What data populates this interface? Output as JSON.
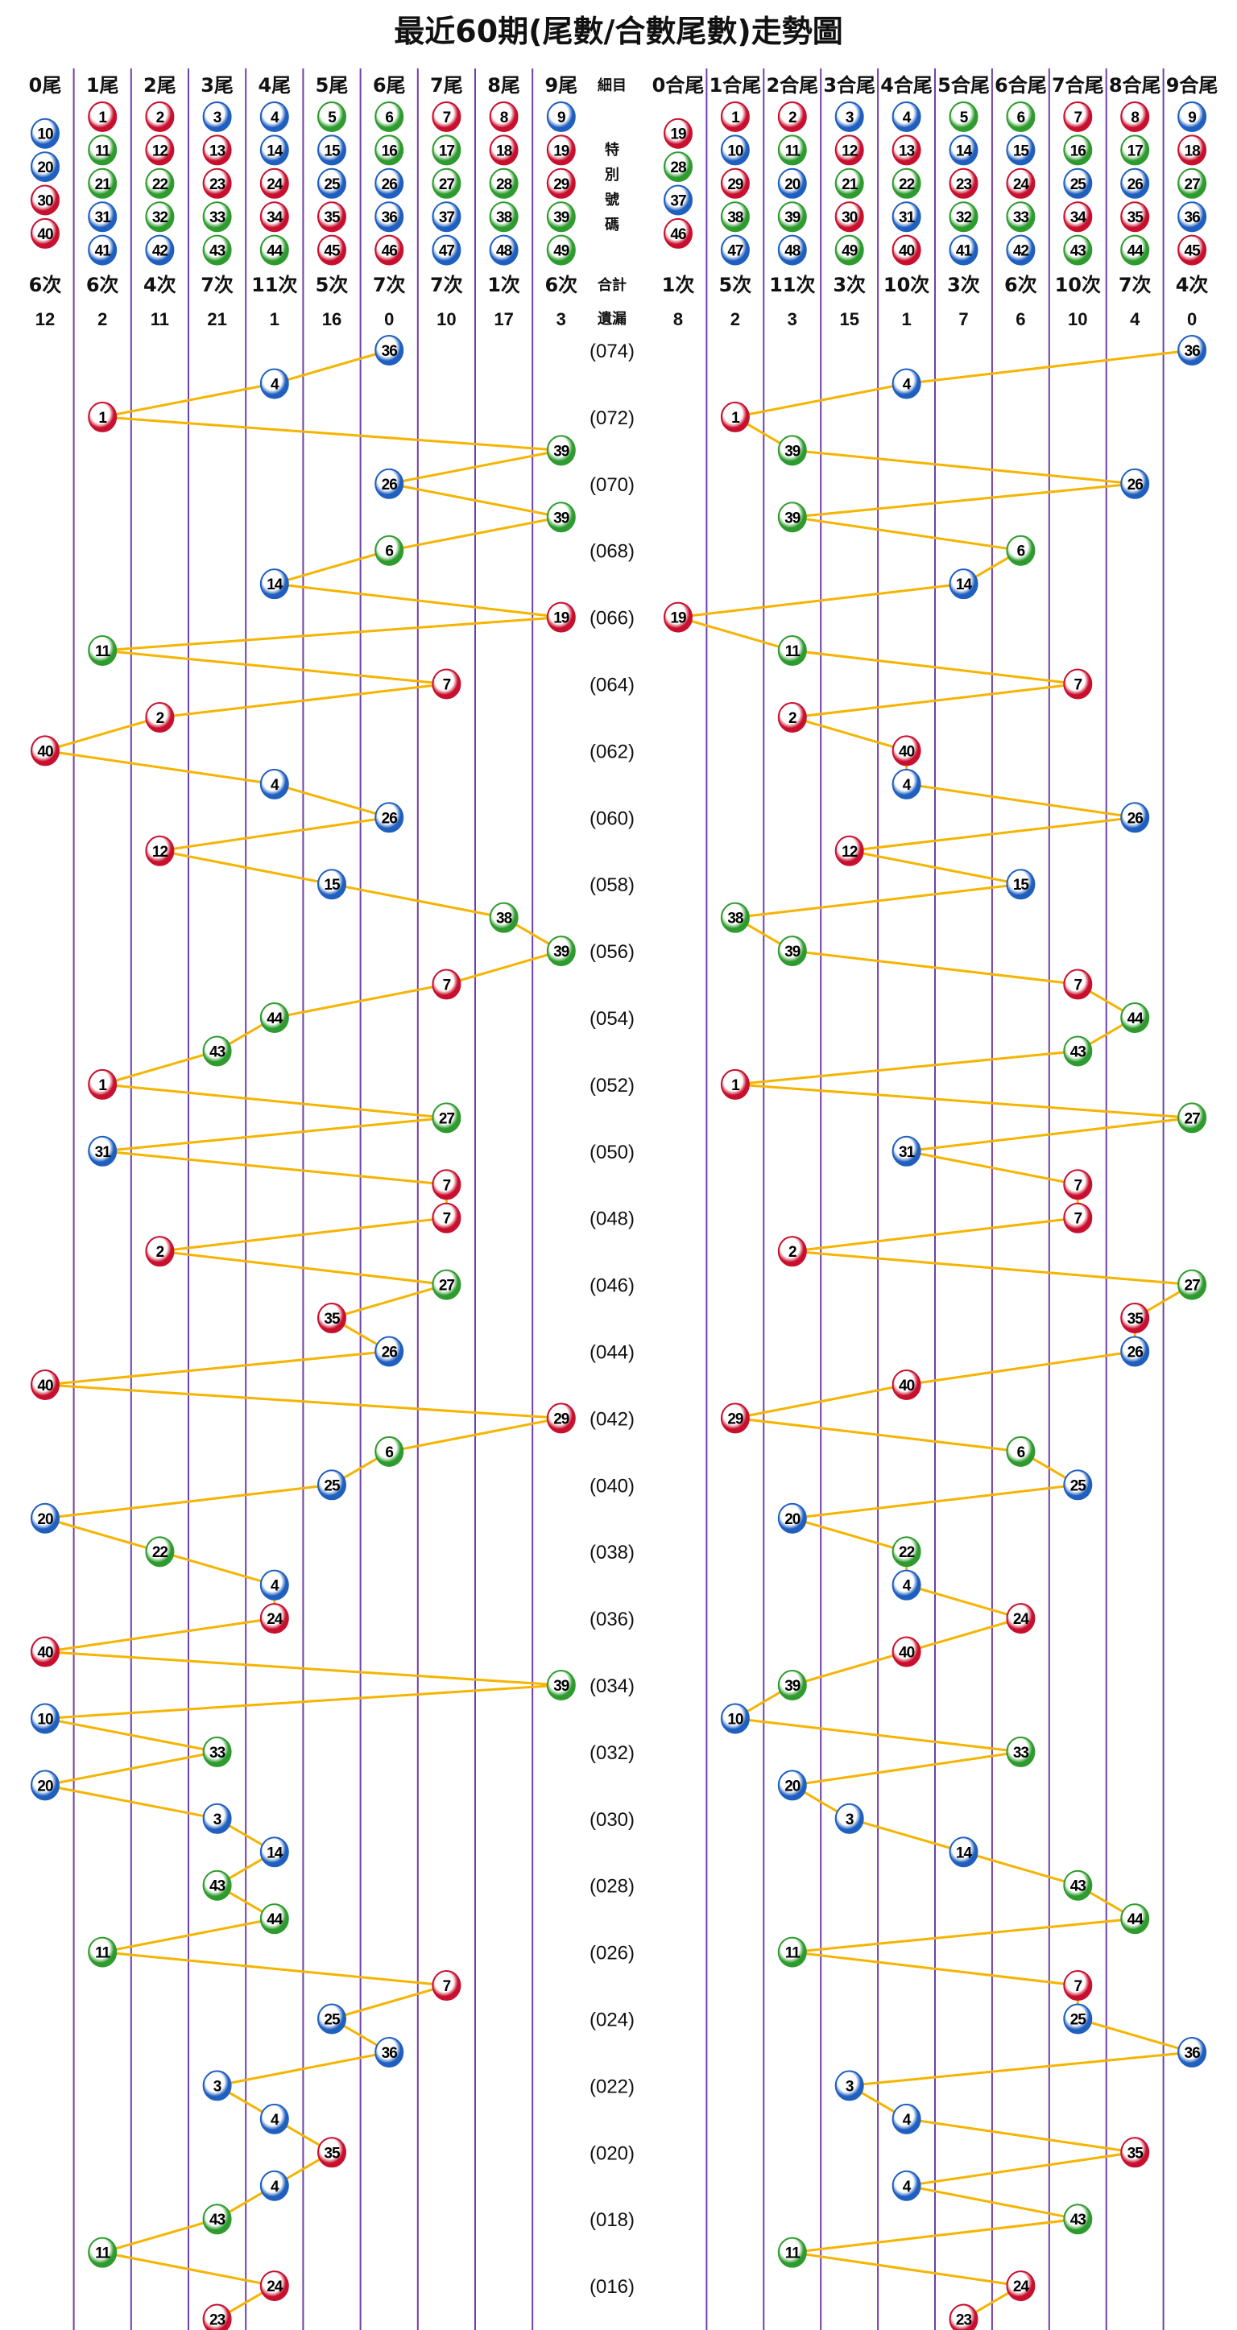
{
  "title": "最近60期(尾數/合數尾數)走勢圖",
  "colors": {
    "red": "#c8102e",
    "blue": "#1f5fbf",
    "green": "#2e9b2e",
    "trend_line": "#f5b400",
    "grid_line": "#6f3fa8"
  },
  "ball_colors": {
    "red": [
      1,
      2,
      7,
      8,
      12,
      13,
      18,
      19,
      23,
      24,
      29,
      30,
      34,
      35,
      40,
      45,
      46
    ],
    "blue": [
      3,
      4,
      9,
      10,
      14,
      15,
      20,
      25,
      26,
      31,
      36,
      37,
      41,
      42,
      47,
      48
    ],
    "green": [
      5,
      6,
      11,
      16,
      17,
      21,
      22,
      27,
      28,
      32,
      33,
      38,
      39,
      43,
      44,
      49
    ]
  },
  "left": {
    "headers": [
      "0尾",
      "1尾",
      "2尾",
      "3尾",
      "4尾",
      "5尾",
      "6尾",
      "7尾",
      "8尾",
      "9尾"
    ],
    "numbers": [
      [
        10,
        20,
        30,
        40
      ],
      [
        1,
        11,
        21,
        31,
        41
      ],
      [
        2,
        12,
        22,
        32,
        42
      ],
      [
        3,
        13,
        23,
        33,
        43
      ],
      [
        4,
        14,
        24,
        34,
        44
      ],
      [
        5,
        15,
        25,
        35,
        45
      ],
      [
        6,
        16,
        26,
        36,
        46
      ],
      [
        7,
        17,
        27,
        37,
        47
      ],
      [
        8,
        18,
        28,
        38,
        48
      ],
      [
        9,
        19,
        29,
        39,
        49
      ]
    ],
    "counts": [
      "6次",
      "6次",
      "4次",
      "7次",
      "11次",
      "5次",
      "7次",
      "7次",
      "1次",
      "6次"
    ],
    "omissions": [
      "12",
      "2",
      "11",
      "21",
      "1",
      "16",
      "0",
      "10",
      "17",
      "3"
    ]
  },
  "middle": {
    "detail_label": "細目",
    "special_label": [
      "特",
      "別",
      "號",
      "碼"
    ],
    "total_label": "合計",
    "omission_label": "遺漏"
  },
  "right": {
    "headers": [
      "0合尾",
      "1合尾",
      "2合尾",
      "3合尾",
      "4合尾",
      "5合尾",
      "6合尾",
      "7合尾",
      "8合尾",
      "9合尾"
    ],
    "numbers": [
      [
        19,
        28,
        37,
        46
      ],
      [
        1,
        10,
        29,
        38,
        47
      ],
      [
        2,
        11,
        20,
        39,
        48
      ],
      [
        3,
        12,
        21,
        30,
        49
      ],
      [
        4,
        13,
        22,
        31,
        40
      ],
      [
        5,
        14,
        23,
        32,
        41
      ],
      [
        6,
        15,
        24,
        33,
        42
      ],
      [
        7,
        16,
        25,
        34,
        43
      ],
      [
        8,
        17,
        26,
        35,
        44
      ],
      [
        9,
        18,
        27,
        36,
        45
      ]
    ],
    "counts": [
      "1次",
      "5次",
      "11次",
      "3次",
      "10次",
      "3次",
      "6次",
      "10次",
      "7次",
      "4次"
    ],
    "omissions": [
      "8",
      "2",
      "3",
      "15",
      "1",
      "7",
      "6",
      "10",
      "4",
      "0"
    ]
  },
  "chart_data": {
    "type": "line",
    "series_order": "newest-first",
    "rows": [
      {
        "number": 36,
        "period_label": "(074)"
      },
      {
        "number": 4
      },
      {
        "number": 1,
        "period_label": "(072)"
      },
      {
        "number": 39
      },
      {
        "number": 26,
        "period_label": "(070)"
      },
      {
        "number": 39
      },
      {
        "number": 6,
        "period_label": "(068)"
      },
      {
        "number": 14
      },
      {
        "number": 19,
        "period_label": "(066)"
      },
      {
        "number": 11
      },
      {
        "number": 7,
        "period_label": "(064)"
      },
      {
        "number": 2
      },
      {
        "number": 40,
        "period_label": "(062)"
      },
      {
        "number": 4
      },
      {
        "number": 26,
        "period_label": "(060)"
      },
      {
        "number": 12
      },
      {
        "number": 15,
        "period_label": "(058)"
      },
      {
        "number": 38
      },
      {
        "number": 39,
        "period_label": "(056)"
      },
      {
        "number": 7
      },
      {
        "number": 44,
        "period_label": "(054)"
      },
      {
        "number": 43
      },
      {
        "number": 1,
        "period_label": "(052)"
      },
      {
        "number": 27
      },
      {
        "number": 31,
        "period_label": "(050)"
      },
      {
        "number": 7
      },
      {
        "number": 7,
        "period_label": "(048)"
      },
      {
        "number": 2
      },
      {
        "number": 27,
        "period_label": "(046)"
      },
      {
        "number": 35
      },
      {
        "number": 26,
        "period_label": "(044)"
      },
      {
        "number": 40
      },
      {
        "number": 29,
        "period_label": "(042)"
      },
      {
        "number": 6
      },
      {
        "number": 25,
        "period_label": "(040)"
      },
      {
        "number": 20
      },
      {
        "number": 22,
        "period_label": "(038)"
      },
      {
        "number": 4
      },
      {
        "number": 24,
        "period_label": "(036)"
      },
      {
        "number": 40
      },
      {
        "number": 39,
        "period_label": "(034)"
      },
      {
        "number": 10
      },
      {
        "number": 33,
        "period_label": "(032)"
      },
      {
        "number": 20
      },
      {
        "number": 3,
        "period_label": "(030)"
      },
      {
        "number": 14
      },
      {
        "number": 43,
        "period_label": "(028)"
      },
      {
        "number": 44
      },
      {
        "number": 11,
        "period_label": "(026)"
      },
      {
        "number": 7
      },
      {
        "number": 25,
        "period_label": "(024)"
      },
      {
        "number": 36
      },
      {
        "number": 3,
        "period_label": "(022)"
      },
      {
        "number": 4
      },
      {
        "number": 35,
        "period_label": "(020)"
      },
      {
        "number": 4
      },
      {
        "number": 43,
        "period_label": "(018)"
      },
      {
        "number": 11
      },
      {
        "number": 24,
        "period_label": "(016)"
      },
      {
        "number": 23
      }
    ]
  }
}
